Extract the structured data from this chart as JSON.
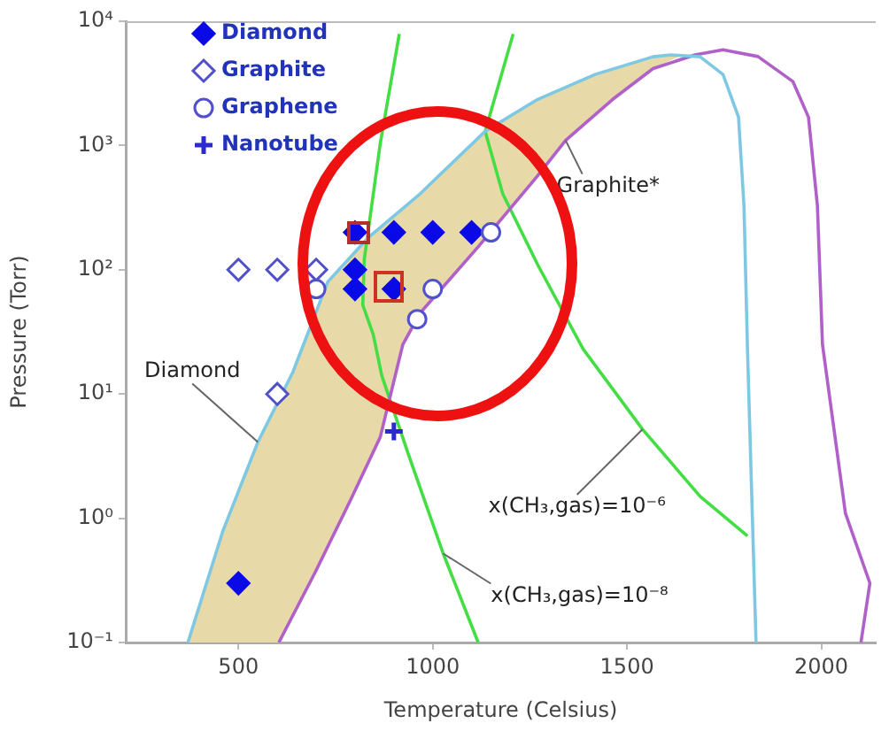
{
  "chart_data": {
    "type": "scatter",
    "xlabel": "Temperature (Celsius)",
    "ylabel": "Pressure (Torr)",
    "xlim": [
      210,
      2140
    ],
    "xticks": [
      500,
      1000,
      1500,
      2000
    ],
    "ylim": [
      0.1,
      10000
    ],
    "yticks": [
      {
        "value": 0.1,
        "label": "10⁻¹"
      },
      {
        "value": 1,
        "label": "10⁰"
      },
      {
        "value": 10,
        "label": "10¹"
      },
      {
        "value": 100,
        "label": "10²"
      },
      {
        "value": 1000,
        "label": "10³"
      },
      {
        "value": 10000,
        "label": "10⁴"
      }
    ],
    "log": "y",
    "grid": false,
    "legend": "top left",
    "series": [
      {
        "type": "area",
        "color": "#e8d9a8",
        "x": [
          370,
          460,
          550,
          640,
          730,
          833,
          968,
          1135,
          1270,
          1418,
          1567,
          1640,
          1567,
          1463,
          1342,
          1270,
          1117,
          968,
          923,
          865,
          788,
          698,
          604
        ],
        "values": [
          0.1,
          0.79,
          4.1,
          15,
          80,
          180,
          410,
          1300,
          2350,
          3730,
          5180,
          5300,
          4160,
          2350,
          1100,
          570,
          153,
          45,
          25,
          4.5,
          1.39,
          0.37,
          0.1
        ]
      },
      {
        "type": "line",
        "color": "#7ec8e3",
        "x": [
          370,
          460,
          550,
          640,
          730,
          833,
          968,
          1135,
          1270,
          1418,
          1567,
          1612,
          1688,
          1747,
          1787,
          1801,
          1810,
          1832
        ],
        "values": [
          0.1,
          0.79,
          4.1,
          15,
          80,
          180,
          410,
          1300,
          2350,
          3730,
          5180,
          5360,
          5180,
          3730,
          1690,
          326,
          23,
          0.1
        ]
      },
      {
        "type": "line",
        "color": "#b060c8",
        "x": [
          604,
          698,
          788,
          865,
          923,
          968,
          1117,
          1270,
          1342,
          1463,
          1567,
          1675,
          1747,
          1837,
          1927,
          1967,
          1990,
          2003,
          2062,
          2125,
          2102
        ],
        "values": [
          0.1,
          0.37,
          1.39,
          4.5,
          25,
          45,
          153,
          570,
          1100,
          2350,
          4160,
          5360,
          5900,
          5200,
          3270,
          1690,
          326,
          25,
          1.1,
          0.3,
          0.1
        ]
      },
      {
        "type": "line",
        "color": "#44dd44",
        "x": [
          914,
          865,
          824,
          820,
          847,
          869,
          937,
          1027,
          1117
        ],
        "values": [
          7900,
          1040,
          122,
          52,
          30,
          14,
          3.3,
          0.52,
          0.1
        ]
      },
      {
        "type": "line",
        "color": "#44dd44",
        "x": [
          1207,
          1135,
          1180,
          1270,
          1387,
          1540,
          1688,
          1810
        ],
        "values": [
          7900,
          1300,
          410,
          110,
          23,
          5.2,
          1.5,
          0.72
        ]
      },
      {
        "name": "Diamond",
        "color": "#0a0ae6",
        "marker": "diamond",
        "x": [
          500,
          800,
          900,
          1000,
          1100,
          800,
          800,
          900
        ],
        "values": [
          0.3,
          200,
          200,
          200,
          200,
          100,
          70,
          70
        ]
      },
      {
        "name": "Graphite",
        "color": "#5050c8",
        "marker": "diamond",
        "x": [
          500,
          600,
          700,
          600
        ],
        "values": [
          100,
          100,
          100,
          10
        ]
      },
      {
        "name": "Graphene",
        "color": "#5050d0",
        "marker": "circle",
        "x": [
          700,
          1000,
          960,
          1150
        ],
        "values": [
          70,
          70,
          40,
          200
        ]
      },
      {
        "name": "Nanotube",
        "color": "#2a2ad0",
        "marker": "cross",
        "x": [
          900
        ],
        "values": [
          5
        ]
      }
    ],
    "annotations": [
      {
        "text": "Diamond",
        "x": 550,
        "y": 4.1
      },
      {
        "text": "Graphite*",
        "x": 1342,
        "y": 1100
      },
      {
        "text": "x(CH₃,gas)=10⁻⁶",
        "x": 1540,
        "y": 5.2
      },
      {
        "text": "x(CH₃,gas)=10⁻⁸",
        "x": 1027,
        "y": 0.52
      }
    ]
  }
}
